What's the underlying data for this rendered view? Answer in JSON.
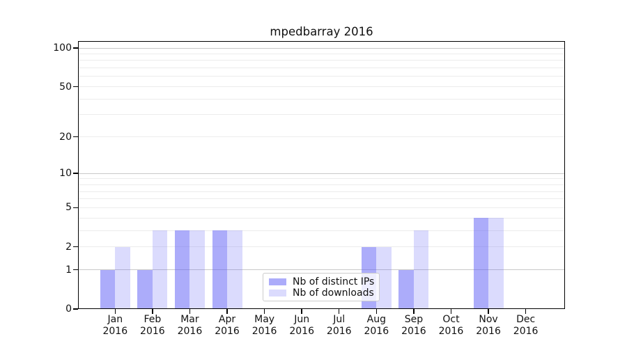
{
  "figure": {
    "background": "#ffffff",
    "text_color": "#111111",
    "axis_color": "#000000",
    "grid_major_color": "#c8c8c8",
    "grid_minor_color": "#ececec"
  },
  "chart_data": {
    "type": "bar",
    "title": "mpedbarray 2016",
    "categories": [
      "Jan 2016",
      "Feb 2016",
      "Mar 2016",
      "Apr 2016",
      "May 2016",
      "Jun 2016",
      "Jul 2016",
      "Aug 2016",
      "Sep 2016",
      "Oct 2016",
      "Nov 2016",
      "Dec 2016"
    ],
    "series": [
      {
        "name": "Nb of distinct IPs",
        "color": "rgba(90,90,245,0.50)",
        "values": [
          1,
          1,
          3,
          3,
          0,
          0,
          0,
          2,
          1,
          0,
          4,
          0
        ]
      },
      {
        "name": "Nb of downloads",
        "color": "rgba(90,90,245,0.22)",
        "values": [
          2,
          3,
          3,
          3,
          0,
          0,
          0,
          2,
          3,
          0,
          4,
          0
        ]
      }
    ],
    "yscale": "log1p",
    "ylim": [
      0,
      100
    ],
    "yticks": [
      0,
      1,
      2,
      5,
      10,
      20,
      50,
      100
    ],
    "ytick_labels": [
      "0",
      "1",
      "2",
      "5",
      "10",
      "20",
      "50",
      "100"
    ],
    "major_gridlines": [
      1,
      10,
      100
    ],
    "minor_gridlines": [
      2,
      3,
      4,
      5,
      6,
      7,
      8,
      9,
      20,
      30,
      40,
      50,
      60,
      70,
      80,
      90
    ],
    "grid": "horizontal only",
    "legend_position": "lower center"
  }
}
